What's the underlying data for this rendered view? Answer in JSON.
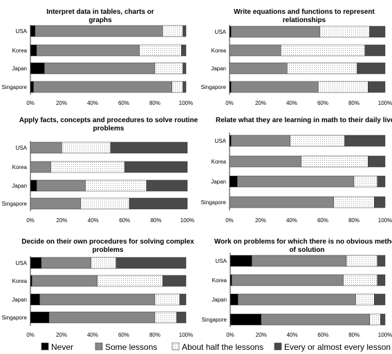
{
  "legend": [
    {
      "label": "Never",
      "color": "#000000",
      "pattern": "solid"
    },
    {
      "label": "Some lessons",
      "color": "#878787",
      "pattern": "solid"
    },
    {
      "label": "About half the lessons",
      "color": "#ffffff",
      "pattern": "dots"
    },
    {
      "label": "Every or almost every lesson",
      "color": "#4a4a4a",
      "pattern": "solid"
    }
  ],
  "chart_data": [
    {
      "type": "bar",
      "stacked": "percent",
      "orientation": "horizontal",
      "title_lines": [
        "Interpret data in tables, charts or",
        "graphs"
      ],
      "categories": [
        "USA",
        "Korea",
        "Japan",
        "Singapore"
      ],
      "x_ticks": [
        "0%",
        "20%",
        "40%",
        "60%",
        "80%",
        "100%"
      ],
      "xlim": [
        0,
        100
      ],
      "series": [
        {
          "name": "Never",
          "values": [
            3,
            4,
            9,
            2
          ]
        },
        {
          "name": "Some lessons",
          "values": [
            82,
            66,
            71,
            89
          ]
        },
        {
          "name": "About half the lessons",
          "values": [
            13,
            27,
            18,
            7
          ]
        },
        {
          "name": "Every or almost every lesson",
          "values": [
            2,
            3,
            2,
            2
          ]
        }
      ]
    },
    {
      "type": "bar",
      "stacked": "percent",
      "orientation": "horizontal",
      "title_lines": [
        "Write equations and functions to represent",
        "relationships"
      ],
      "categories": [
        "USA",
        "Korea",
        "Japan",
        "Singapore"
      ],
      "x_ticks": [
        "0%",
        "20%",
        "40%",
        "60%",
        "80%",
        "100%"
      ],
      "xlim": [
        0,
        100
      ],
      "series": [
        {
          "name": "Never",
          "values": [
            1,
            0,
            0,
            1
          ]
        },
        {
          "name": "Some lessons",
          "values": [
            57,
            33,
            37,
            56
          ]
        },
        {
          "name": "About half the lessons",
          "values": [
            32,
            54,
            45,
            32
          ]
        },
        {
          "name": "Every or almost every lesson",
          "values": [
            10,
            13,
            18,
            11
          ]
        }
      ]
    },
    {
      "type": "bar",
      "stacked": "percent",
      "orientation": "horizontal",
      "title_lines": [
        "Apply facts, concepts and procedures to solve routine",
        "problems"
      ],
      "categories": [
        "USA",
        "Korea",
        "Japan",
        "Singapore"
      ],
      "x_ticks": [
        "0%",
        "20%",
        "40%",
        "60%",
        "80%",
        "100%"
      ],
      "xlim": [
        0,
        100
      ],
      "series": [
        {
          "name": "Never",
          "values": [
            0,
            0,
            4,
            0
          ]
        },
        {
          "name": "Some lessons",
          "values": [
            20,
            13,
            31,
            32
          ]
        },
        {
          "name": "About half the lessons",
          "values": [
            31,
            47,
            39,
            31
          ]
        },
        {
          "name": "Every or almost every lesson",
          "values": [
            49,
            40,
            26,
            37
          ]
        }
      ]
    },
    {
      "type": "bar",
      "stacked": "percent",
      "orientation": "horizontal",
      "title_lines": [
        "Relate what they are learning in math to their daily lives"
      ],
      "categories": [
        "USA",
        "Korea",
        "Japan",
        "Singapore"
      ],
      "x_ticks": [
        "0%",
        "20%",
        "40%",
        "60%",
        "80%",
        "100%"
      ],
      "xlim": [
        0,
        100
      ],
      "series": [
        {
          "name": "Never",
          "values": [
            1,
            0,
            5,
            0
          ]
        },
        {
          "name": "Some lessons",
          "values": [
            38,
            46,
            75,
            67
          ]
        },
        {
          "name": "About half the lessons",
          "values": [
            35,
            43,
            15,
            26
          ]
        },
        {
          "name": "Every or almost every lesson",
          "values": [
            26,
            11,
            5,
            7
          ]
        }
      ]
    },
    {
      "type": "bar",
      "stacked": "percent",
      "orientation": "horizontal",
      "title_lines": [
        "Decide on their own procedures for solving complex",
        "problems"
      ],
      "categories": [
        "USA",
        "Korea",
        "Japan",
        "Singapore"
      ],
      "x_ticks": [
        "0%",
        "20%",
        "40%",
        "60%",
        "80%",
        "100%"
      ],
      "xlim": [
        0,
        100
      ],
      "series": [
        {
          "name": "Never",
          "values": [
            7,
            1,
            6,
            12
          ]
        },
        {
          "name": "Some lessons",
          "values": [
            32,
            42,
            74,
            68
          ]
        },
        {
          "name": "About half the lessons",
          "values": [
            16,
            42,
            16,
            14
          ]
        },
        {
          "name": "Every or almost every lesson",
          "values": [
            45,
            15,
            4,
            6
          ]
        }
      ]
    },
    {
      "type": "bar",
      "stacked": "percent",
      "orientation": "horizontal",
      "title_lines": [
        "Work on problems for which there is no obvious method",
        "of solution"
      ],
      "categories": [
        "USA",
        "Korea",
        "Japan",
        "Singapore"
      ],
      "x_ticks": [
        "0%",
        "20%",
        "40%",
        "60%",
        "80%",
        "100%"
      ],
      "xlim": [
        0,
        100
      ],
      "series": [
        {
          "name": "Never",
          "values": [
            14,
            1,
            5,
            20
          ]
        },
        {
          "name": "Some lessons",
          "values": [
            61,
            72,
            76,
            70
          ]
        },
        {
          "name": "About half the lessons",
          "values": [
            20,
            22,
            12,
            7
          ]
        },
        {
          "name": "Every or almost every lesson",
          "values": [
            5,
            5,
            7,
            3
          ]
        }
      ]
    }
  ]
}
